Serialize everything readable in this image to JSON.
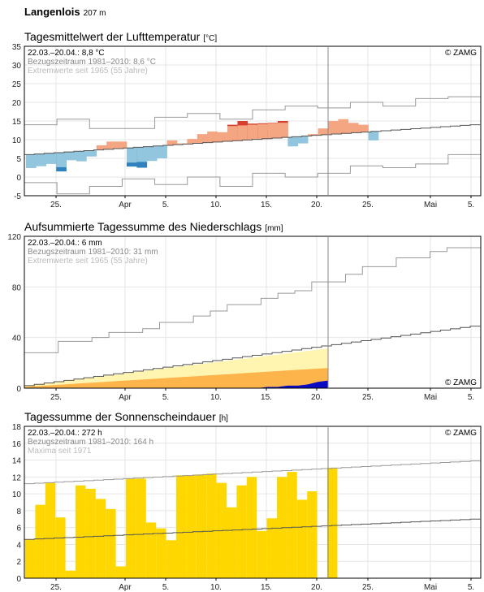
{
  "station": {
    "name": "Langenlois",
    "elevation": "207 m"
  },
  "x_labels": [
    "25.",
    "Apr",
    "5.",
    "10.",
    "15.",
    "20.",
    "25.",
    "Mai",
    "5."
  ],
  "copyright": "© ZAMG",
  "charts": [
    {
      "title": "Tagesmittelwert der Lufttemperatur",
      "unit": "[°C]",
      "annotations": [
        "22.03.–20.04.: 8,8 °C",
        "Bezugszeitraum 1981–2010: 8,6 °C",
        "Extremwerte seit 1965 (55 Jahre)"
      ],
      "y_ticks": [
        "35",
        "30",
        "25",
        "20",
        "15",
        "10",
        "5",
        "0",
        "-5"
      ]
    },
    {
      "title": "Aufsummierte Tagessumme des Niederschlags",
      "unit": "[mm]",
      "annotations": [
        "22.03.–20.04.: 6 mm",
        "Bezugszeitraum 1981–2010: 31 mm",
        "Extremwerte seit 1965 (55 Jahre)"
      ],
      "y_ticks": [
        "120",
        "80",
        "40",
        "0"
      ]
    },
    {
      "title": "Tagessumme der Sonnenscheindauer",
      "unit": "[h]",
      "annotations": [
        "22.03.–20.04.: 272 h",
        "Bezugszeitraum 1981–2010: 164 h",
        "Maxima seit 1971"
      ],
      "y_ticks": [
        "18",
        "16",
        "14",
        "12",
        "10",
        "8",
        "6",
        "4",
        "2",
        "0"
      ]
    }
  ],
  "colors": {
    "warm_dark": "#d7402f",
    "warm": "#f4a582",
    "cold": "#92c5de",
    "cold_dark": "#2f82bd",
    "precip_light": "#fff5b0",
    "precip_mid": "#fdb44b",
    "precip_obs": "#0b0bc4",
    "sun": "#ffd700",
    "grid": "#e6e6e6",
    "ref": "#555555",
    "extreme": "#999999"
  },
  "chart_data": [
    {
      "type": "area",
      "title": "Tagesmittelwert der Lufttemperatur",
      "ylabel": "[°C]",
      "x_range": [
        "2019-03-22",
        "2019-05-06"
      ],
      "today_marker": "2019-04-21",
      "ylim": [
        -5,
        35
      ],
      "observed_daily_mean": [
        2.4,
        2.9,
        3.5,
        1.5,
        4.5,
        4.2,
        5.5,
        8.5,
        9.5,
        9.5,
        2.8,
        2.5,
        4.3,
        5.0,
        9.8,
        9.0,
        10.2,
        11.5,
        12.2,
        12.0,
        14.0,
        15.0,
        14.3,
        14.4,
        14.5,
        15.0,
        8.2,
        9.0,
        11.5,
        13.0,
        15.0,
        15.5,
        14.5,
        14.0,
        9.8
      ],
      "reference_mean_start_end": [
        6.0,
        14.0
      ],
      "extreme_max_approx": [
        14,
        15.5,
        13,
        13,
        16,
        17,
        15.5,
        18,
        19,
        18.5,
        20,
        19,
        21,
        21.5
      ],
      "extreme_min_approx": [
        -1.5,
        -4.5,
        -2.5,
        -0.5,
        -2,
        0,
        -2.5,
        1,
        0,
        1,
        3,
        2.5,
        3.5,
        6
      ]
    },
    {
      "type": "area",
      "title": "Aufsummierte Tagessumme des Niederschlags",
      "ylabel": "[mm]",
      "ylim": [
        0,
        120
      ],
      "observed_cumulative_end": 6,
      "reference_cumulative_end": 31,
      "reference_cumulative_span_end": 47,
      "extreme_max_cumulative_end": 111,
      "extreme_max_start": 28
    },
    {
      "type": "bar",
      "title": "Tagessumme der Sonnenscheindauer",
      "ylabel": "[h]",
      "ylim": [
        0,
        18
      ],
      "values": [
        4.6,
        8.7,
        11.3,
        7.2,
        0.9,
        11.0,
        10.6,
        9.4,
        8.2,
        1.4,
        11.8,
        11.8,
        6.6,
        5.9,
        4.5,
        12.2,
        12.2,
        12.3,
        12.4,
        11.3,
        8.4,
        11.0,
        12.0,
        5.6,
        7.1,
        12.0,
        12.6,
        9.3,
        10.3,
        0,
        13.1
      ],
      "reference_start_end": [
        4.6,
        7.0
      ],
      "maxima_start_end": [
        11.2,
        13.9
      ]
    }
  ]
}
